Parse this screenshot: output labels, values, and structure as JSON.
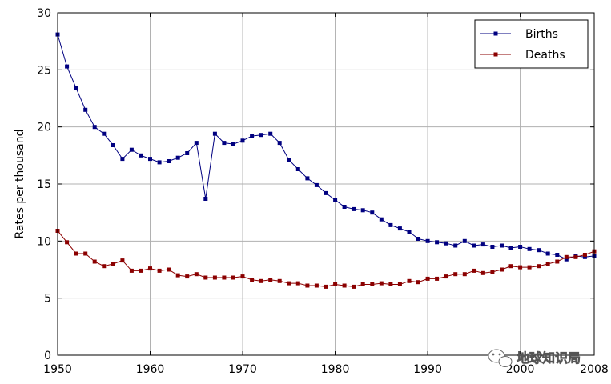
{
  "chart_data": {
    "type": "line",
    "title": "",
    "xlabel": "",
    "ylabel": "Rates per thousand",
    "xlim": [
      1950,
      2008
    ],
    "ylim": [
      0,
      30
    ],
    "x_ticks": [
      1950,
      1960,
      1970,
      1980,
      1990,
      2000,
      2008
    ],
    "y_ticks": [
      0,
      5,
      10,
      15,
      20,
      25,
      30
    ],
    "grid": true,
    "legend_position": "top-right",
    "x": [
      1950,
      1951,
      1952,
      1953,
      1954,
      1955,
      1956,
      1957,
      1958,
      1959,
      1960,
      1961,
      1962,
      1963,
      1964,
      1965,
      1966,
      1967,
      1968,
      1969,
      1970,
      1971,
      1972,
      1973,
      1974,
      1975,
      1976,
      1977,
      1978,
      1979,
      1980,
      1981,
      1982,
      1983,
      1984,
      1985,
      1986,
      1987,
      1988,
      1989,
      1990,
      1991,
      1992,
      1993,
      1994,
      1995,
      1996,
      1997,
      1998,
      1999,
      2000,
      2001,
      2002,
      2003,
      2004,
      2005,
      2006,
      2007,
      2008
    ],
    "series": [
      {
        "name": "Births",
        "color": "#000080",
        "values": [
          28.1,
          25.3,
          23.4,
          21.5,
          20.0,
          19.4,
          18.4,
          17.2,
          18.0,
          17.5,
          17.2,
          16.9,
          17.0,
          17.3,
          17.7,
          18.6,
          13.7,
          19.4,
          18.6,
          18.5,
          18.8,
          19.2,
          19.3,
          19.4,
          18.6,
          17.1,
          16.3,
          15.5,
          14.9,
          14.2,
          13.6,
          13.0,
          12.8,
          12.7,
          12.5,
          11.9,
          11.4,
          11.1,
          10.8,
          10.2,
          10.0,
          9.9,
          9.8,
          9.6,
          10.0,
          9.6,
          9.7,
          9.5,
          9.6,
          9.4,
          9.5,
          9.3,
          9.2,
          8.9,
          8.8,
          8.4,
          8.7,
          8.6,
          8.7
        ]
      },
      {
        "name": "Deaths",
        "color": "#8b0000",
        "values": [
          10.9,
          9.9,
          8.9,
          8.9,
          8.2,
          7.8,
          8.0,
          8.3,
          7.4,
          7.4,
          7.6,
          7.4,
          7.5,
          7.0,
          6.9,
          7.1,
          6.8,
          6.8,
          6.8,
          6.8,
          6.9,
          6.6,
          6.5,
          6.6,
          6.5,
          6.3,
          6.3,
          6.1,
          6.1,
          6.0,
          6.2,
          6.1,
          6.0,
          6.2,
          6.2,
          6.3,
          6.2,
          6.2,
          6.5,
          6.4,
          6.7,
          6.7,
          6.9,
          7.1,
          7.1,
          7.4,
          7.2,
          7.3,
          7.5,
          7.8,
          7.7,
          7.7,
          7.8,
          8.0,
          8.2,
          8.6,
          8.6,
          8.8,
          9.1
        ]
      }
    ]
  },
  "watermark": {
    "text": "地球知识局"
  }
}
